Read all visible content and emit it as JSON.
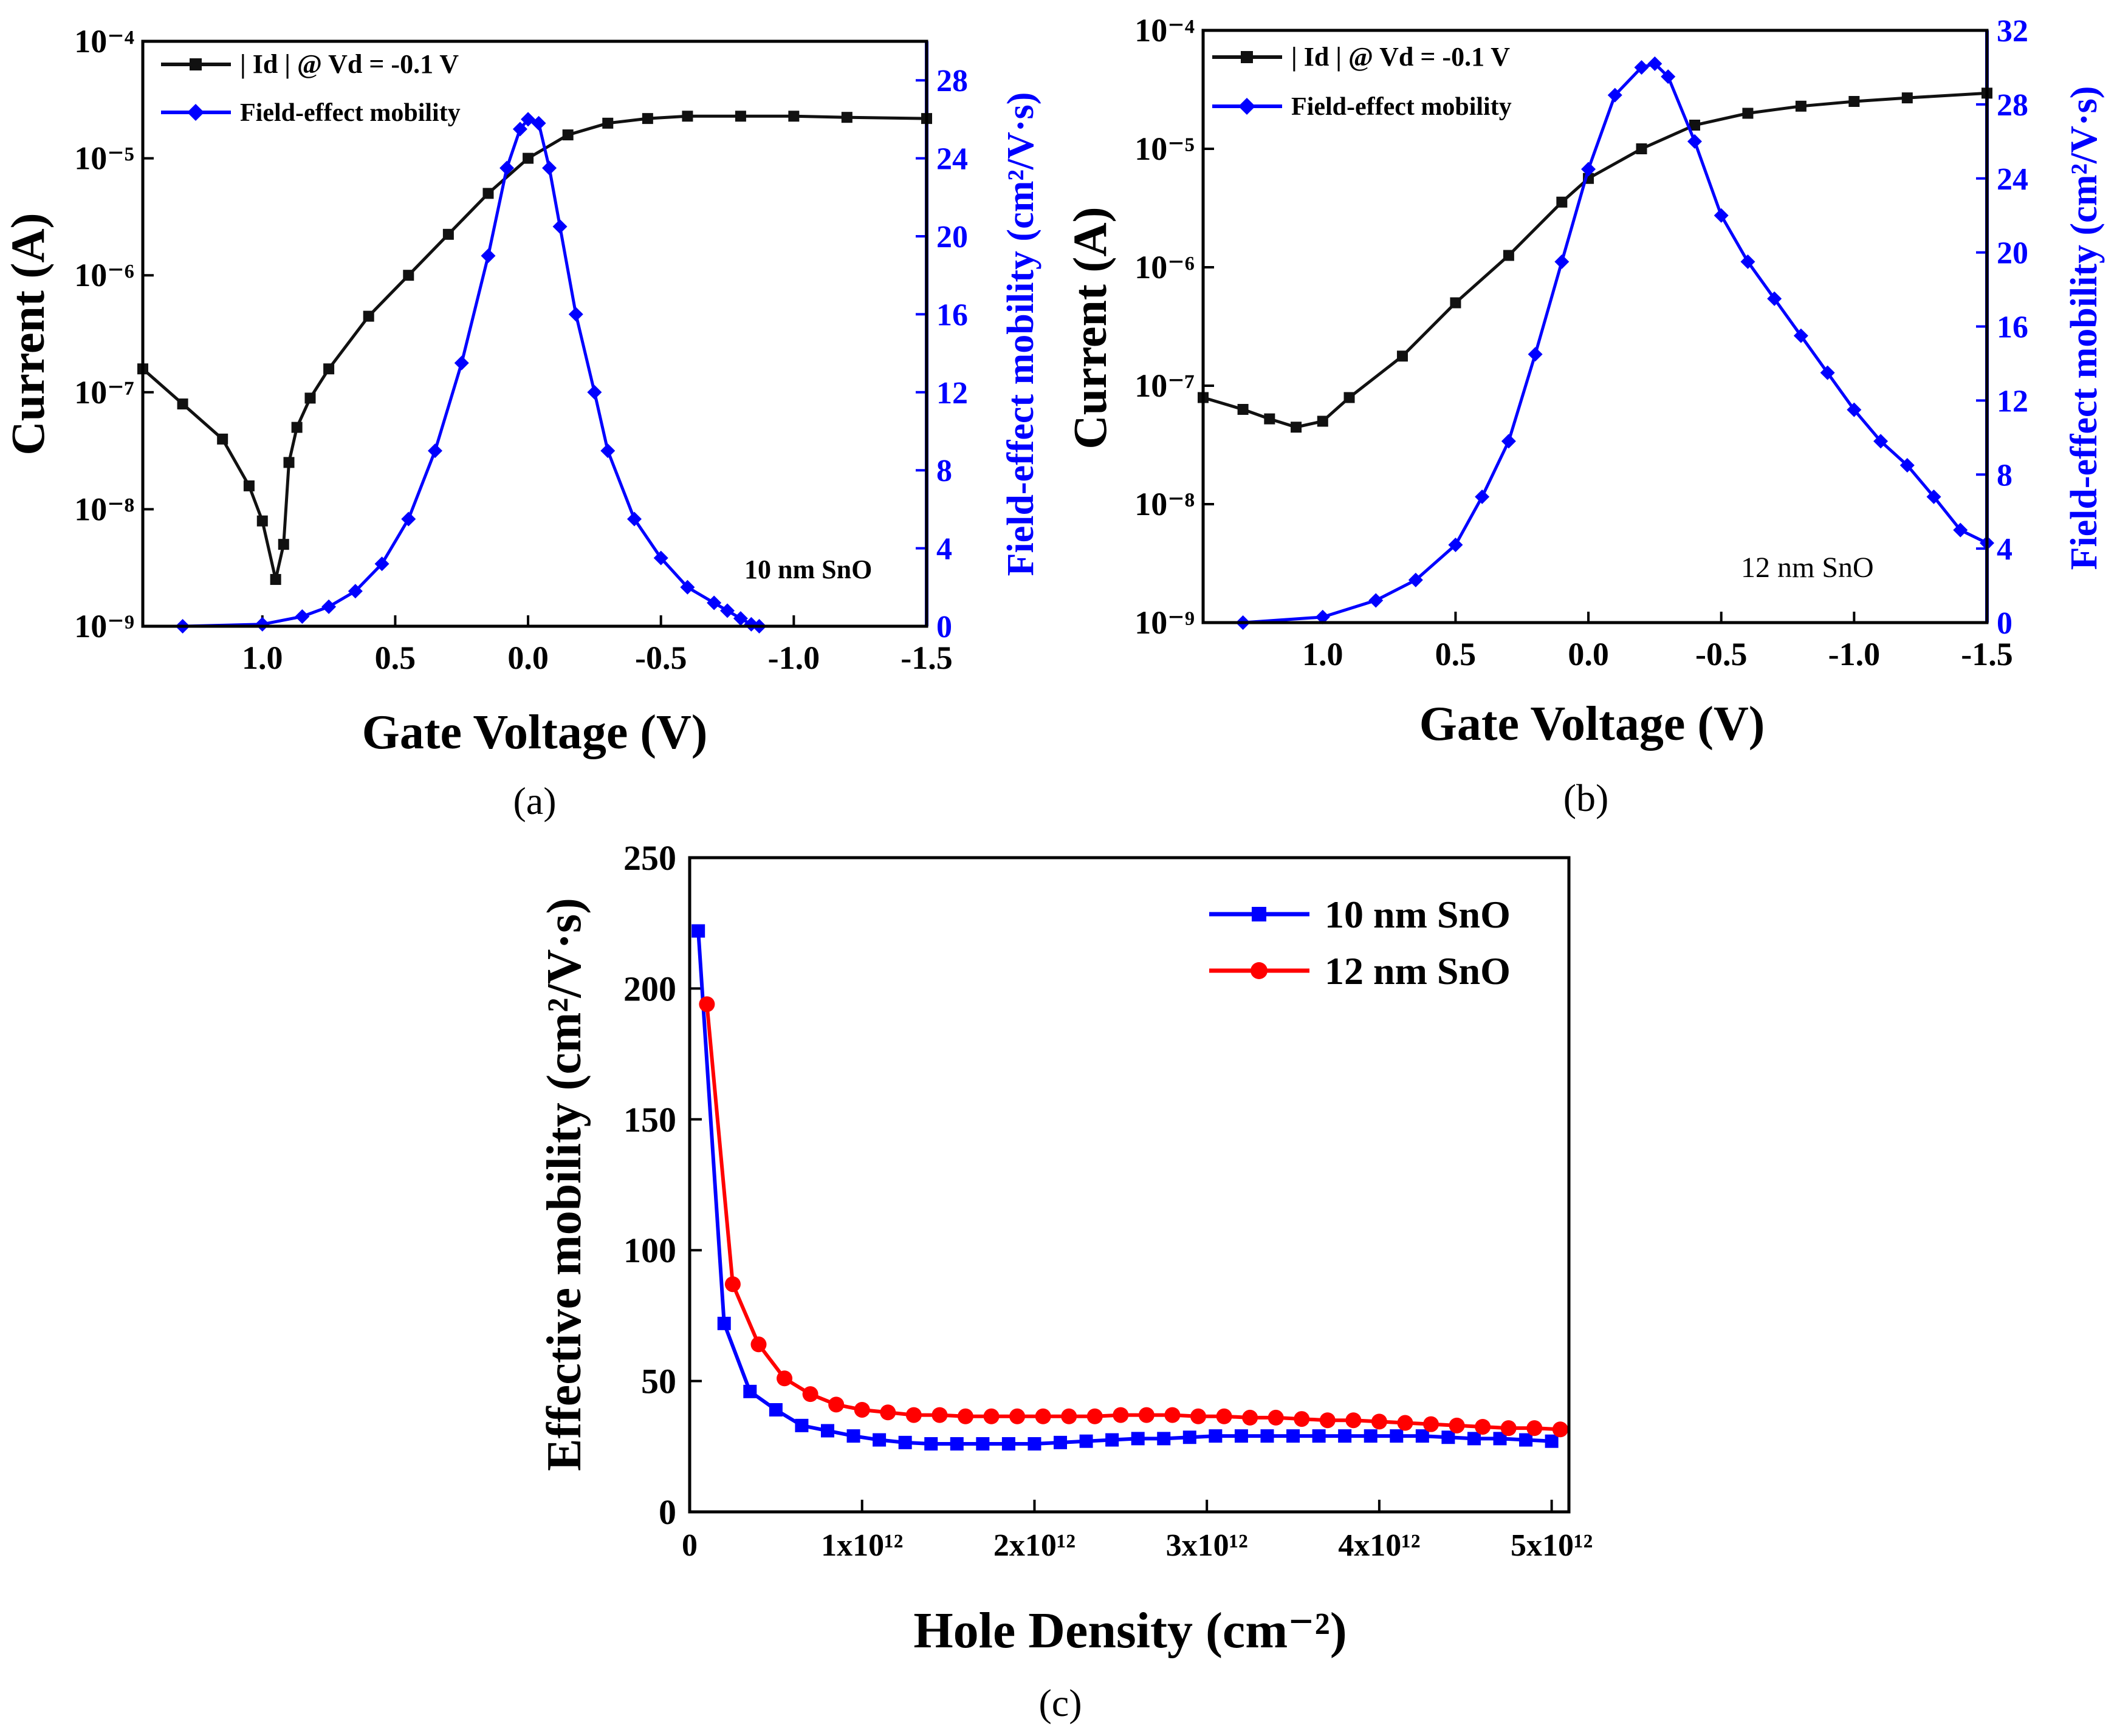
{
  "colors": {
    "black_series": "#111111",
    "blue_series": "#0000ff",
    "red_series": "#ff0000",
    "blue_axis": "#0000ff"
  },
  "chart_data": [
    {
      "panel": "a",
      "type": "line",
      "caption": "(a)",
      "xlabel": "Gate Voltage (V)",
      "ylabel_left": "Current (A)",
      "ylabel_right": "Field-effect mobility (cm²/V·s)",
      "xlim": [
        1.45,
        -1.5
      ],
      "ylim_left_log10": [
        -9,
        -4
      ],
      "ylim_right": [
        0,
        30
      ],
      "x_ticks": [
        1.0,
        0.5,
        0.0,
        -0.5,
        -1.0,
        -1.5
      ],
      "x_tick_labels": [
        "1.0",
        "0.5",
        "0.0",
        "-0.5",
        "-1.0",
        "-1.5"
      ],
      "y_left_ticks": [
        -9,
        -8,
        -7,
        -6,
        -5,
        -4
      ],
      "y_left_tick_labels": [
        "10⁻⁹",
        "10⁻⁸",
        "10⁻⁷",
        "10⁻⁶",
        "10⁻⁵",
        "10⁻⁴"
      ],
      "y_right_ticks": [
        0,
        4,
        8,
        12,
        16,
        20,
        24,
        28
      ],
      "y_right_tick_labels": [
        "0",
        "4",
        "8",
        "12",
        "16",
        "20",
        "24",
        "28"
      ],
      "annotation": "10 nm SnO",
      "legend": [
        "| Id | @ Vd = -0.1 V",
        "Field-effect mobility"
      ],
      "current": {
        "name": "| Id | @ Vd = -0.1 V",
        "x": [
          1.45,
          1.3,
          1.15,
          1.05,
          1.0,
          0.95,
          0.92,
          0.9,
          0.87,
          0.82,
          0.75,
          0.6,
          0.45,
          0.3,
          0.15,
          0.0,
          -0.15,
          -0.3,
          -0.45,
          -0.6,
          -0.8,
          -1.0,
          -1.2,
          -1.5
        ],
        "log10": [
          -6.8,
          -7.1,
          -7.4,
          -7.8,
          -8.1,
          -8.6,
          -8.3,
          -7.6,
          -7.3,
          -7.05,
          -6.8,
          -6.35,
          -6.0,
          -5.65,
          -5.3,
          -5.0,
          -4.8,
          -4.7,
          -4.66,
          -4.64,
          -4.64,
          -4.64,
          -4.65,
          -4.66
        ]
      },
      "mobility": {
        "name": "Field-effect mobility",
        "x": [
          1.3,
          1.0,
          0.85,
          0.75,
          0.65,
          0.55,
          0.45,
          0.35,
          0.25,
          0.15,
          0.08,
          0.03,
          0.0,
          -0.04,
          -0.08,
          -0.12,
          -0.18,
          -0.25,
          -0.3,
          -0.4,
          -0.5,
          -0.6,
          -0.7,
          -0.75,
          -0.8,
          -0.84,
          -0.87
        ],
        "y": [
          0,
          0.1,
          0.5,
          1.0,
          1.8,
          3.2,
          5.5,
          9.0,
          13.5,
          19.0,
          23.5,
          25.5,
          26.0,
          25.8,
          23.5,
          20.5,
          16.0,
          12.0,
          9.0,
          5.5,
          3.5,
          2.0,
          1.2,
          0.8,
          0.4,
          0.1,
          0
        ]
      }
    },
    {
      "panel": "b",
      "type": "line",
      "caption": "(b)",
      "xlabel": "Gate Voltage (V)",
      "ylabel_left": "Current (A)",
      "ylabel_right": "Field-effect mobility (cm²/V·s)",
      "xlim": [
        1.45,
        -1.5
      ],
      "ylim_left_log10": [
        -9,
        -4
      ],
      "ylim_right": [
        0,
        32
      ],
      "x_ticks": [
        1.0,
        0.5,
        0.0,
        -0.5,
        -1.0,
        -1.5
      ],
      "x_tick_labels": [
        "1.0",
        "0.5",
        "0.0",
        "-0.5",
        "-1.0",
        "-1.5"
      ],
      "y_left_ticks": [
        -9,
        -8,
        -7,
        -6,
        -5,
        -4
      ],
      "y_left_tick_labels": [
        "10⁻⁹",
        "10⁻⁸",
        "10⁻⁷",
        "10⁻⁶",
        "10⁻⁵",
        "10⁻⁴"
      ],
      "y_right_ticks": [
        0,
        4,
        8,
        12,
        16,
        20,
        24,
        28,
        32
      ],
      "y_right_tick_labels": [
        "0",
        "4",
        "8",
        "12",
        "16",
        "20",
        "24",
        "28",
        "32"
      ],
      "annotation": "12 nm SnO",
      "legend": [
        "| Id | @ Vd = -0.1 V",
        "Field-effect mobility"
      ],
      "current": {
        "name": "| Id | @ Vd = -0.1 V",
        "x": [
          1.45,
          1.3,
          1.2,
          1.1,
          1.0,
          0.9,
          0.7,
          0.5,
          0.3,
          0.1,
          0.0,
          -0.2,
          -0.4,
          -0.6,
          -0.8,
          -1.0,
          -1.2,
          -1.5
        ],
        "log10": [
          -7.1,
          -7.2,
          -7.28,
          -7.35,
          -7.3,
          -7.1,
          -6.75,
          -6.3,
          -5.9,
          -5.45,
          -5.25,
          -5.0,
          -4.8,
          -4.7,
          -4.64,
          -4.6,
          -4.57,
          -4.53
        ]
      },
      "mobility": {
        "name": "Field-effect mobility",
        "x": [
          1.3,
          1.0,
          0.8,
          0.65,
          0.5,
          0.4,
          0.3,
          0.2,
          0.1,
          0.0,
          -0.1,
          -0.2,
          -0.25,
          -0.3,
          -0.4,
          -0.5,
          -0.6,
          -0.7,
          -0.8,
          -0.9,
          -1.0,
          -1.1,
          -1.2,
          -1.3,
          -1.4,
          -1.5
        ],
        "y": [
          0,
          0.3,
          1.2,
          2.3,
          4.2,
          6.8,
          9.8,
          14.5,
          19.5,
          24.5,
          28.5,
          30.0,
          30.2,
          29.5,
          26.0,
          22.0,
          19.5,
          17.5,
          15.5,
          13.5,
          11.5,
          9.8,
          8.5,
          6.8,
          5.0,
          4.3
        ]
      }
    },
    {
      "panel": "c",
      "type": "line",
      "caption": "(c)",
      "xlabel": "Hole Density (cm⁻²)",
      "ylabel": "Effective mobility (cm²/V·s)",
      "xlim": [
        0,
        5100000000000.0
      ],
      "ylim": [
        0,
        250
      ],
      "x_ticks": [
        0,
        1000000000000.0,
        2000000000000.0,
        3000000000000.0,
        4000000000000.0,
        5000000000000.0
      ],
      "x_tick_labels": [
        "0",
        "1x10¹²",
        "2x10¹²",
        "3x10¹²",
        "4x10¹²",
        "5x10¹²"
      ],
      "y_ticks": [
        0,
        50,
        100,
        150,
        200,
        250
      ],
      "y_tick_labels": [
        "0",
        "50",
        "100",
        "150",
        "200",
        "250"
      ],
      "legend": [
        "10 nm SnO",
        "12 nm SnO"
      ],
      "series": [
        {
          "name": "10 nm SnO",
          "marker": "square",
          "x": [
            50000000000.0,
            200000000000.0,
            350000000000.0,
            500000000000.0,
            650000000000.0,
            800000000000.0,
            950000000000.0,
            1100000000000.0,
            1250000000000.0,
            1400000000000.0,
            1550000000000.0,
            1700000000000.0,
            1850000000000.0,
            2000000000000.0,
            2150000000000.0,
            2300000000000.0,
            2450000000000.0,
            2600000000000.0,
            2750000000000.0,
            2900000000000.0,
            3050000000000.0,
            3200000000000.0,
            3350000000000.0,
            3500000000000.0,
            3650000000000.0,
            3800000000000.0,
            3950000000000.0,
            4100000000000.0,
            4250000000000.0,
            4400000000000.0,
            4550000000000.0,
            4700000000000.0,
            4850000000000.0,
            5000000000000.0
          ],
          "y": [
            222,
            72,
            46,
            39,
            33,
            31,
            29,
            27.5,
            26.5,
            26,
            26,
            26,
            26,
            26,
            26.5,
            27,
            27.5,
            28,
            28,
            28.5,
            29,
            29,
            29,
            29,
            29,
            29,
            29,
            29,
            29,
            28.5,
            28,
            28,
            27.5,
            27
          ]
        },
        {
          "name": "12 nm SnO",
          "marker": "circle",
          "x": [
            100000000000.0,
            250000000000.0,
            400000000000.0,
            550000000000.0,
            700000000000.0,
            850000000000.0,
            1000000000000.0,
            1150000000000.0,
            1300000000000.0,
            1450000000000.0,
            1600000000000.0,
            1750000000000.0,
            1900000000000.0,
            2050000000000.0,
            2200000000000.0,
            2350000000000.0,
            2500000000000.0,
            2650000000000.0,
            2800000000000.0,
            2950000000000.0,
            3100000000000.0,
            3250000000000.0,
            3400000000000.0,
            3550000000000.0,
            3700000000000.0,
            3850000000000.0,
            4000000000000.0,
            4150000000000.0,
            4300000000000.0,
            4450000000000.0,
            4600000000000.0,
            4750000000000.0,
            4900000000000.0,
            5050000000000.0
          ],
          "y": [
            194,
            87,
            64,
            51,
            45,
            41,
            39,
            38,
            37,
            37,
            36.5,
            36.5,
            36.5,
            36.5,
            36.5,
            36.5,
            37,
            37,
            37,
            36.5,
            36.5,
            36,
            36,
            35.5,
            35,
            35,
            34.5,
            34,
            33.5,
            33,
            32.5,
            32,
            32,
            31.5
          ]
        }
      ]
    }
  ]
}
